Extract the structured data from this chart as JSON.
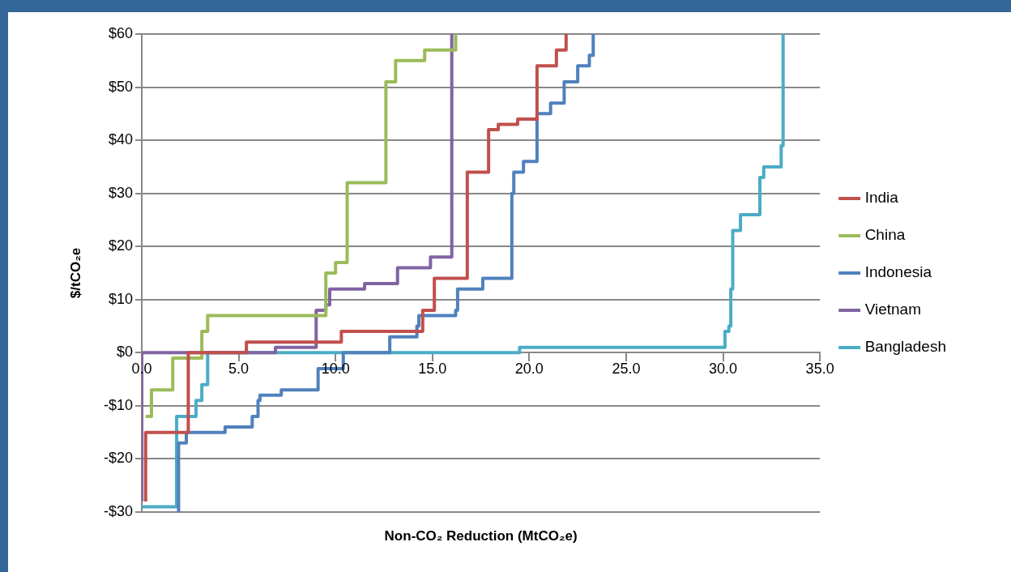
{
  "chart_data": {
    "type": "step",
    "xlabel": "Non-CO₂ Reduction (MtCO₂e)",
    "ylabel": "$/tCO₂e",
    "xlim": [
      0,
      35
    ],
    "xticks": [
      {
        "value": 0,
        "label": "0.0"
      },
      {
        "value": 5,
        "label": "5.0"
      },
      {
        "value": 10,
        "label": "10.0"
      },
      {
        "value": 15,
        "label": "15.0"
      },
      {
        "value": 20,
        "label": "20.0"
      },
      {
        "value": 25,
        "label": "25.0"
      },
      {
        "value": 30,
        "label": "30.0"
      },
      {
        "value": 35,
        "label": "35.0"
      }
    ],
    "ylim": [
      -30,
      60
    ],
    "yticks": [
      {
        "value": -30,
        "label": "-$30"
      },
      {
        "value": -20,
        "label": "-$20"
      },
      {
        "value": -10,
        "label": "-$10"
      },
      {
        "value": 0,
        "label": "$0"
      },
      {
        "value": 10,
        "label": "$10"
      },
      {
        "value": 20,
        "label": "$20"
      },
      {
        "value": 30,
        "label": "$30"
      },
      {
        "value": 40,
        "label": "$40"
      },
      {
        "value": 50,
        "label": "$50"
      },
      {
        "value": 60,
        "label": "$60"
      }
    ],
    "grid": "y",
    "legend": "right",
    "marker": "none",
    "series": [
      {
        "name": "India",
        "color": "#c0504d",
        "x": [
          0.2,
          0.2,
          2.4,
          5.4,
          10.3,
          14.5,
          15.1,
          16.8,
          17.9,
          18.4,
          19.4,
          20.4,
          21.4,
          21.9
        ],
        "values": [
          -28,
          -15,
          0,
          2,
          4,
          8,
          14,
          34,
          42,
          43,
          44,
          54,
          57,
          60
        ]
      },
      {
        "name": "China",
        "color": "#9bbb59",
        "x": [
          0.2,
          0.5,
          1.6,
          3.1,
          3.4,
          9.5,
          10,
          10.6,
          12.6,
          13.1,
          14.6,
          16.2
        ],
        "values": [
          -12,
          -7,
          -1,
          4,
          7,
          15,
          17,
          32,
          51,
          55,
          57,
          60
        ]
      },
      {
        "name": "Indonesia",
        "color": "#4f81bd",
        "x": [
          1.9,
          1.9,
          2.3,
          4.3,
          5.7,
          6,
          6.1,
          7.2,
          9.1,
          10.4,
          12.8,
          14.2,
          14.3,
          16.2,
          16.3,
          17.6,
          19.1,
          19.2,
          19.7,
          20.4,
          21.1,
          21.8,
          22.5,
          23.1,
          23.3
        ],
        "values": [
          -30,
          -17,
          -15,
          -14,
          -12,
          -9,
          -8,
          -7,
          -3,
          0,
          3,
          5,
          7,
          8,
          12,
          14,
          30,
          34,
          36,
          45,
          47,
          51,
          54,
          56,
          60
        ]
      },
      {
        "name": "Vietnam",
        "color": "#8064a2",
        "x": [
          0,
          0,
          6.9,
          9,
          9.5,
          9.7,
          11.5,
          13.2,
          14.9,
          16
        ],
        "values": [
          -28,
          0,
          1,
          8,
          9,
          12,
          13,
          16,
          18,
          60
        ]
      },
      {
        "name": "Bangladesh",
        "color": "#4bacc6",
        "x": [
          0,
          1.8,
          2.8,
          3.1,
          3.4,
          19.5,
          30.1,
          30.3,
          30.4,
          30.5,
          30.9,
          31.9,
          32.1,
          33,
          33.1
        ],
        "values": [
          -29,
          -12,
          -9,
          -6,
          0,
          1,
          4,
          5,
          12,
          23,
          26,
          33,
          35,
          39,
          60
        ]
      }
    ]
  }
}
